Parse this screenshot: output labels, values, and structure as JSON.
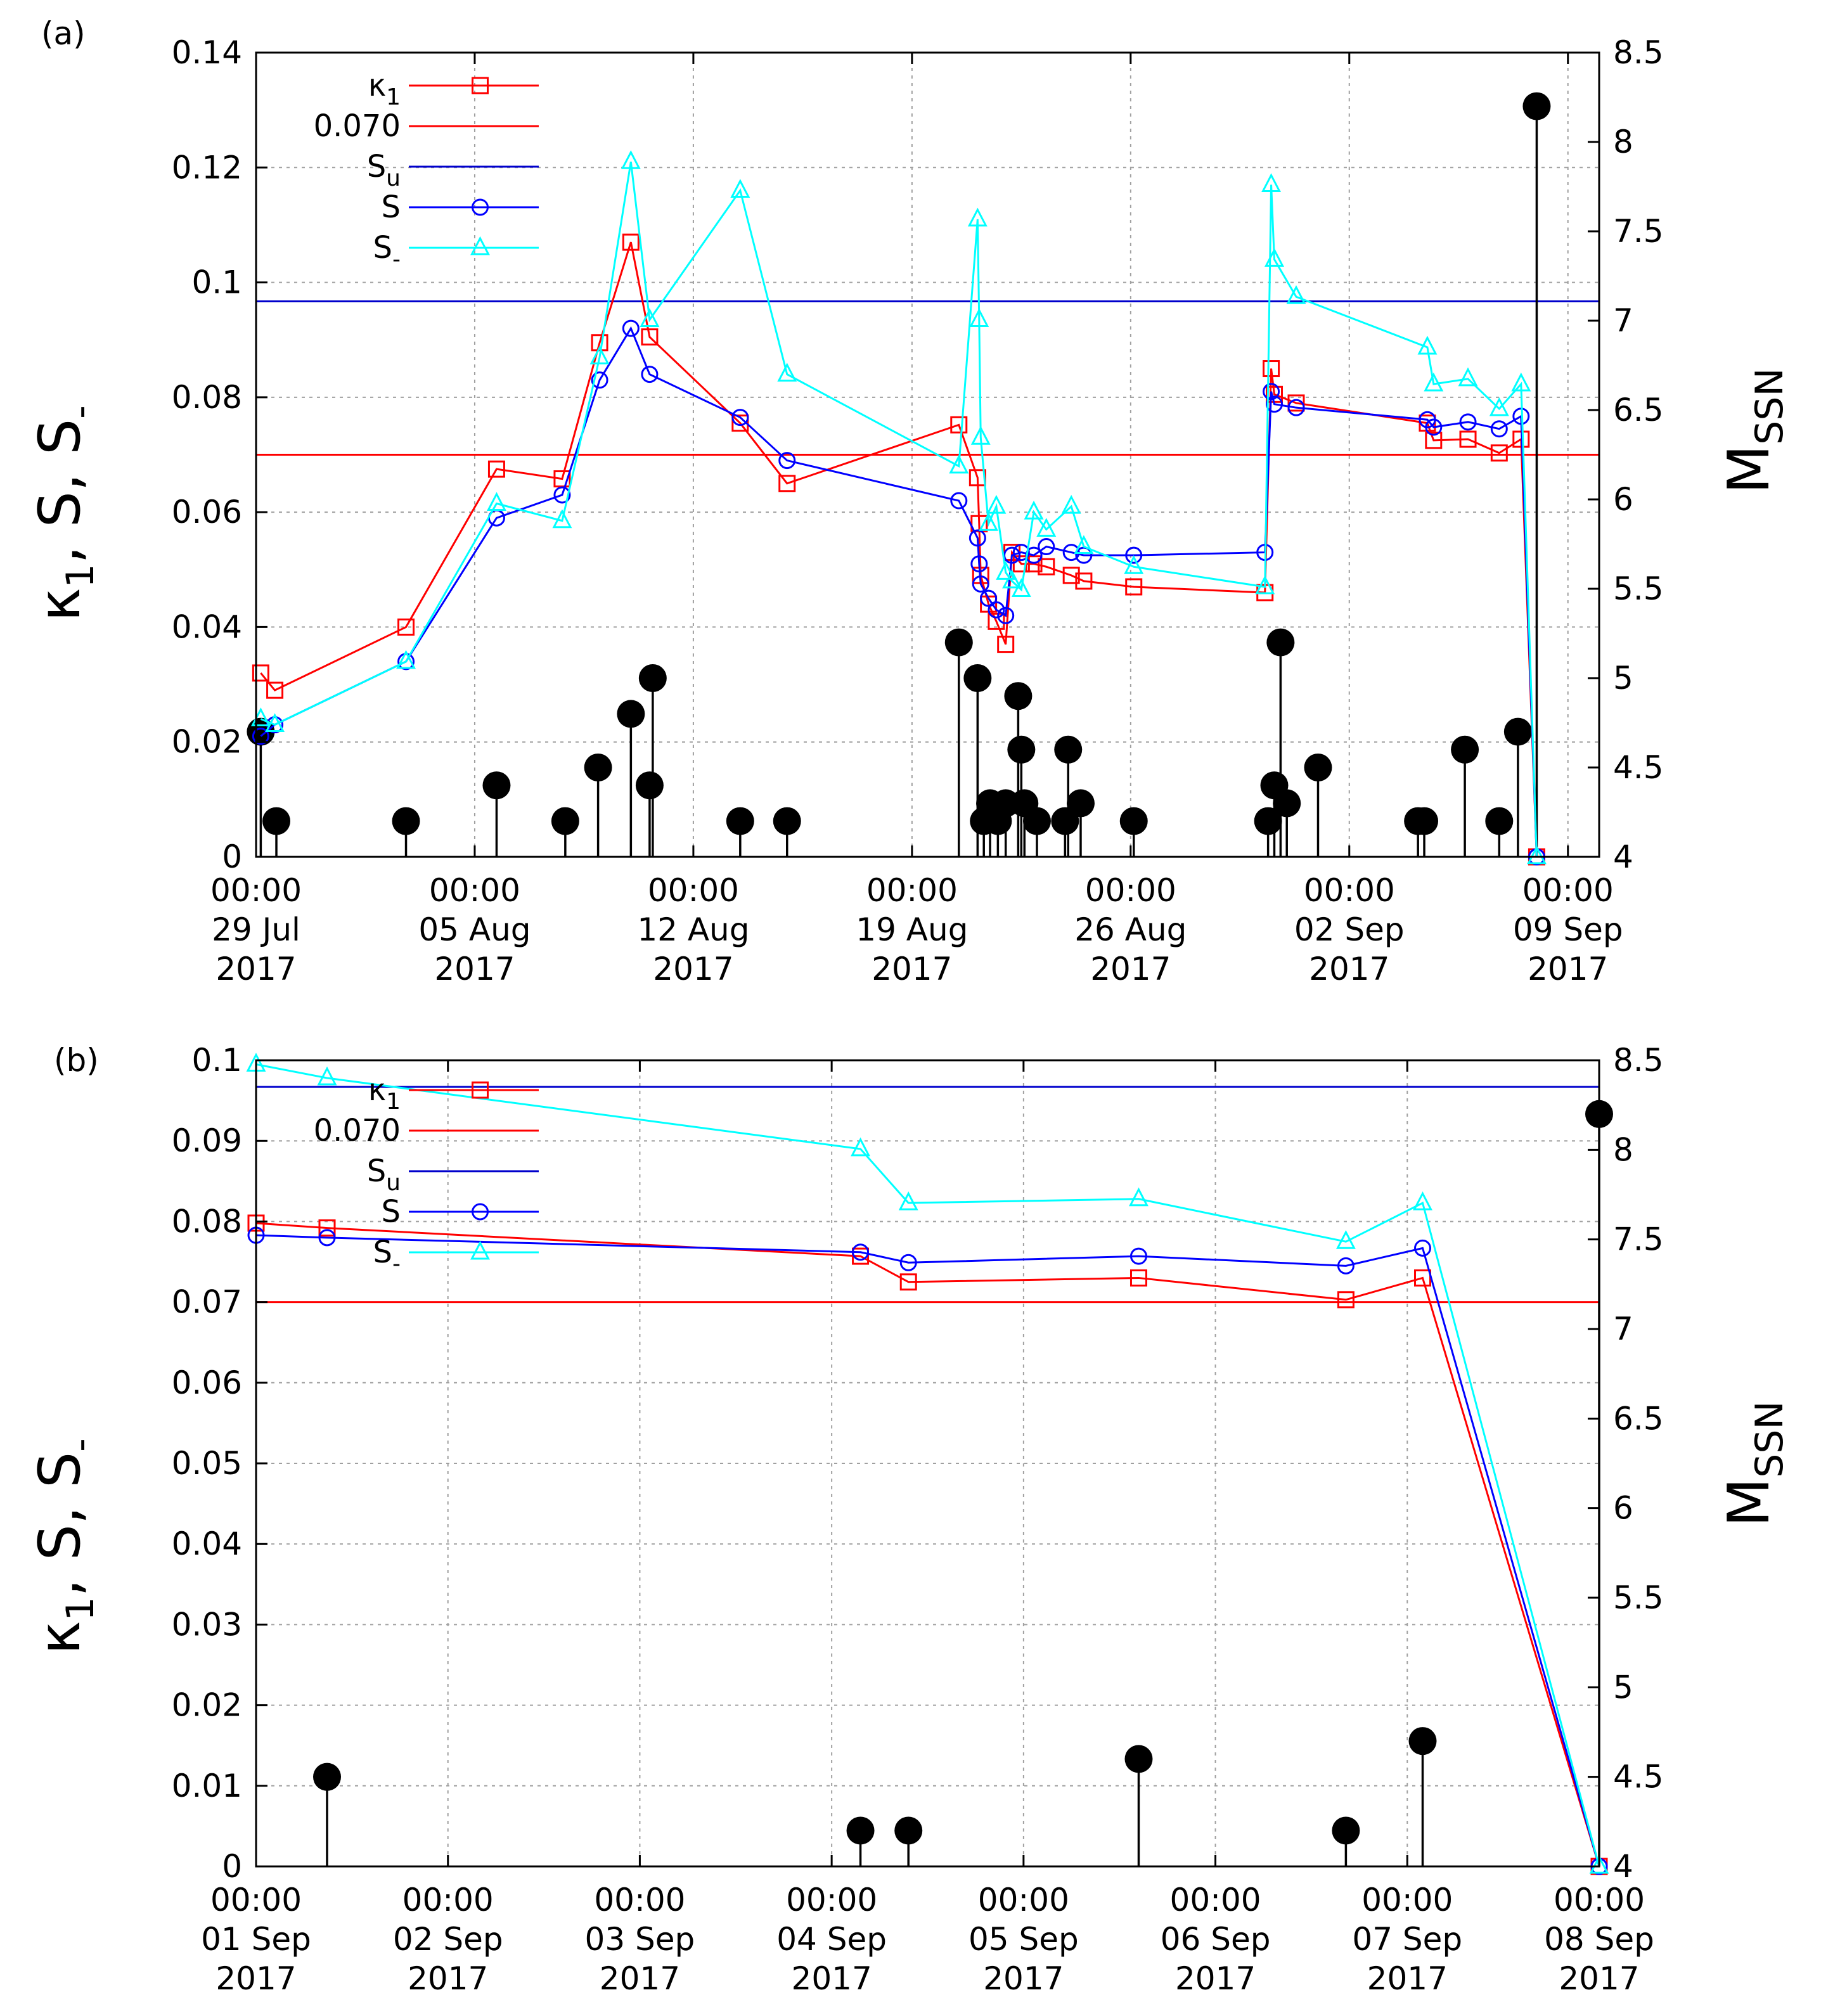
{
  "colors": {
    "k1": "#ff0000",
    "th": "#ff0000",
    "Su": "#0000cc",
    "S": "#0000ff",
    "Sm": "#00ffff",
    "mag": "#000000"
  },
  "chart_data": [
    {
      "type": "line",
      "panel_label": "(a)",
      "ylabel": "κ1, S, S-",
      "y2label": "MSSN",
      "xlim": [
        0,
        43
      ],
      "ylim": [
        0,
        0.14
      ],
      "y2lim": [
        4,
        8.5
      ],
      "xticks": [
        {
          "x": 0,
          "l1": "00:00",
          "l2": "29 Jul",
          "l3": "2017"
        },
        {
          "x": 7,
          "l1": "00:00",
          "l2": "05 Aug",
          "l3": "2017"
        },
        {
          "x": 14,
          "l1": "00:00",
          "l2": "12 Aug",
          "l3": "2017"
        },
        {
          "x": 21,
          "l1": "00:00",
          "l2": "19 Aug",
          "l3": "2017"
        },
        {
          "x": 28,
          "l1": "00:00",
          "l2": "26 Aug",
          "l3": "2017"
        },
        {
          "x": 35,
          "l1": "00:00",
          "l2": "02 Sep",
          "l3": "2017"
        },
        {
          "x": 42,
          "l1": "00:00",
          "l2": "09 Sep",
          "l3": "2017"
        }
      ],
      "yticks": [
        "0",
        "0.02",
        "0.04",
        "0.06",
        "0.08",
        "0.1",
        "0.12",
        "0.14"
      ],
      "y2ticks": [
        "4",
        "4.5",
        "5",
        "5.5",
        "6",
        "6.5",
        "7",
        "7.5",
        "8",
        "8.5"
      ],
      "legend": [
        {
          "label": "κ1",
          "key": "k1",
          "marker": "square"
        },
        {
          "label": "0.070",
          "key": "th",
          "marker": "none"
        },
        {
          "label": "Su",
          "key": "Su",
          "marker": "none"
        },
        {
          "label": "S",
          "key": "S",
          "marker": "circle"
        },
        {
          "label": "S-",
          "key": "Sm",
          "marker": "triangle"
        }
      ],
      "threshold": 0.07,
      "Su": 0.0967,
      "series": [
        {
          "name": "κ1",
          "key": "k1",
          "marker": "square",
          "x": [
            0.15,
            0.6,
            4.8,
            7.7,
            9.8,
            11.0,
            12.0,
            12.6,
            15.5,
            17.0,
            22.5,
            23.1,
            23.15,
            23.2,
            23.45,
            23.7,
            24.0,
            24.2,
            24.5,
            24.9,
            25.3,
            26.1,
            26.5,
            28.1,
            32.3,
            32.5,
            32.6,
            33.3,
            37.5,
            37.7,
            38.8,
            39.8,
            40.5,
            41.0
          ],
          "y": [
            0.032,
            0.029,
            0.04,
            0.0675,
            0.0658,
            0.0895,
            0.107,
            0.0905,
            0.0755,
            0.065,
            0.0752,
            0.066,
            0.058,
            0.049,
            0.044,
            0.041,
            0.037,
            0.053,
            0.051,
            0.051,
            0.0505,
            0.049,
            0.048,
            0.047,
            0.046,
            0.085,
            0.0805,
            0.079,
            0.0755,
            0.0725,
            0.0727,
            0.0703,
            0.0727,
            0.0
          ]
        },
        {
          "name": "S",
          "key": "S",
          "marker": "circle",
          "x": [
            0.15,
            0.6,
            4.8,
            7.7,
            9.8,
            11.0,
            12.0,
            12.6,
            15.5,
            17.0,
            22.5,
            23.1,
            23.15,
            23.2,
            23.45,
            23.7,
            24.0,
            24.2,
            24.5,
            24.9,
            25.3,
            26.1,
            26.5,
            28.1,
            32.3,
            32.5,
            32.6,
            33.3,
            37.5,
            37.7,
            38.8,
            39.8,
            40.5,
            41.0
          ],
          "y": [
            0.021,
            0.023,
            0.034,
            0.059,
            0.063,
            0.083,
            0.092,
            0.084,
            0.0765,
            0.069,
            0.062,
            0.0555,
            0.051,
            0.0475,
            0.045,
            0.043,
            0.042,
            0.0525,
            0.053,
            0.0525,
            0.054,
            0.053,
            0.0525,
            0.0525,
            0.053,
            0.081,
            0.0788,
            0.0782,
            0.0761,
            0.0748,
            0.0757,
            0.0745,
            0.0767,
            0.0
          ]
        },
        {
          "name": "S-",
          "key": "Sm",
          "marker": "triangle",
          "x": [
            0.15,
            0.6,
            4.8,
            7.7,
            9.8,
            11.0,
            12.0,
            12.6,
            15.5,
            17.0,
            22.5,
            23.1,
            23.15,
            23.2,
            23.45,
            23.7,
            24.0,
            24.2,
            24.5,
            24.9,
            25.3,
            26.1,
            26.5,
            28.1,
            32.3,
            32.5,
            32.6,
            33.3,
            37.5,
            37.7,
            38.8,
            39.8,
            40.5,
            41.0
          ],
          "y": [
            0.024,
            0.023,
            0.034,
            0.0615,
            0.0585,
            0.087,
            0.121,
            0.0935,
            0.116,
            0.084,
            0.068,
            0.111,
            0.0935,
            0.073,
            0.058,
            0.061,
            0.0495,
            0.048,
            0.0465,
            0.06,
            0.057,
            0.061,
            0.054,
            0.0505,
            0.047,
            0.117,
            0.104,
            0.0975,
            0.0887,
            0.0823,
            0.0832,
            0.078,
            0.0823,
            0.0
          ]
        }
      ],
      "magnitudes": {
        "x": [
          0.15,
          0.65,
          4.8,
          7.7,
          9.9,
          10.95,
          12.0,
          12.6,
          12.7,
          15.5,
          17.0,
          22.5,
          23.1,
          23.3,
          23.5,
          23.75,
          24.0,
          24.4,
          24.5,
          24.6,
          25.0,
          25.9,
          26.0,
          26.4,
          28.1,
          32.4,
          32.6,
          32.8,
          33.0,
          34.0,
          37.2,
          37.4,
          38.7,
          39.8,
          40.4,
          41.0
        ],
        "y": [
          4.7,
          4.2,
          4.2,
          4.4,
          4.2,
          4.5,
          4.8,
          4.4,
          5.0,
          4.2,
          4.2,
          5.2,
          5.0,
          4.2,
          4.3,
          4.2,
          4.3,
          4.9,
          4.6,
          4.3,
          4.2,
          4.2,
          4.6,
          4.3,
          4.2,
          4.2,
          4.4,
          5.2,
          4.3,
          4.5,
          4.2,
          4.2,
          4.6,
          4.2,
          4.7,
          8.2
        ]
      }
    },
    {
      "type": "line",
      "panel_label": "(b)",
      "ylabel": "κ1, S, S-",
      "y2label": "MSSN",
      "xlim": [
        0,
        7
      ],
      "ylim": [
        0,
        0.1
      ],
      "y2lim": [
        4,
        8.5
      ],
      "xticks": [
        {
          "x": 0,
          "l1": "00:00",
          "l2": "01 Sep",
          "l3": "2017"
        },
        {
          "x": 1,
          "l1": "00:00",
          "l2": "02 Sep",
          "l3": "2017"
        },
        {
          "x": 2,
          "l1": "00:00",
          "l2": "03 Sep",
          "l3": "2017"
        },
        {
          "x": 3,
          "l1": "00:00",
          "l2": "04 Sep",
          "l3": "2017"
        },
        {
          "x": 4,
          "l1": "00:00",
          "l2": "05 Sep",
          "l3": "2017"
        },
        {
          "x": 5,
          "l1": "00:00",
          "l2": "06 Sep",
          "l3": "2017"
        },
        {
          "x": 6,
          "l1": "00:00",
          "l2": "07 Sep",
          "l3": "2017"
        },
        {
          "x": 7,
          "l1": "00:00",
          "l2": "08 Sep",
          "l3": "2017"
        }
      ],
      "yticks": [
        "0",
        "0.01",
        "0.02",
        "0.03",
        "0.04",
        "0.05",
        "0.06",
        "0.07",
        "0.08",
        "0.09",
        "0.1"
      ],
      "y2ticks": [
        "4",
        "4.5",
        "5",
        "5.5",
        "6",
        "6.5",
        "7",
        "7.5",
        "8",
        "8.5"
      ],
      "legend": [
        {
          "label": "κ1",
          "key": "k1",
          "marker": "square"
        },
        {
          "label": "0.070",
          "key": "th",
          "marker": "none"
        },
        {
          "label": "Su",
          "key": "Su",
          "marker": "none"
        },
        {
          "label": "S",
          "key": "S",
          "marker": "circle"
        },
        {
          "label": "S-",
          "key": "Sm",
          "marker": "triangle"
        }
      ],
      "threshold": 0.07,
      "Su": 0.0967,
      "series": [
        {
          "name": "κ1",
          "key": "k1",
          "marker": "square",
          "x": [
            0.0,
            0.37,
            3.15,
            3.4,
            4.6,
            5.68,
            6.08,
            7.0
          ],
          "y": [
            0.0798,
            0.0792,
            0.0757,
            0.0725,
            0.073,
            0.0703,
            0.073,
            0.0
          ]
        },
        {
          "name": "S",
          "key": "S",
          "marker": "circle",
          "x": [
            0.0,
            0.37,
            3.15,
            3.4,
            4.6,
            5.68,
            6.08,
            7.0
          ],
          "y": [
            0.0783,
            0.078,
            0.0762,
            0.0749,
            0.0757,
            0.0745,
            0.0767,
            0.0
          ]
        },
        {
          "name": "S-",
          "key": "Sm",
          "marker": "triangle",
          "x": [
            0.0,
            0.37,
            3.15,
            3.4,
            4.6,
            5.68,
            6.08,
            7.0
          ],
          "y": [
            0.0995,
            0.0978,
            0.089,
            0.0823,
            0.0828,
            0.0775,
            0.0823,
            0.0
          ]
        }
      ],
      "magnitudes": {
        "x": [
          0.37,
          3.15,
          3.4,
          4.6,
          5.68,
          6.08,
          7.0
        ],
        "y": [
          4.5,
          4.2,
          4.2,
          4.6,
          4.2,
          4.7,
          8.2
        ]
      }
    }
  ]
}
